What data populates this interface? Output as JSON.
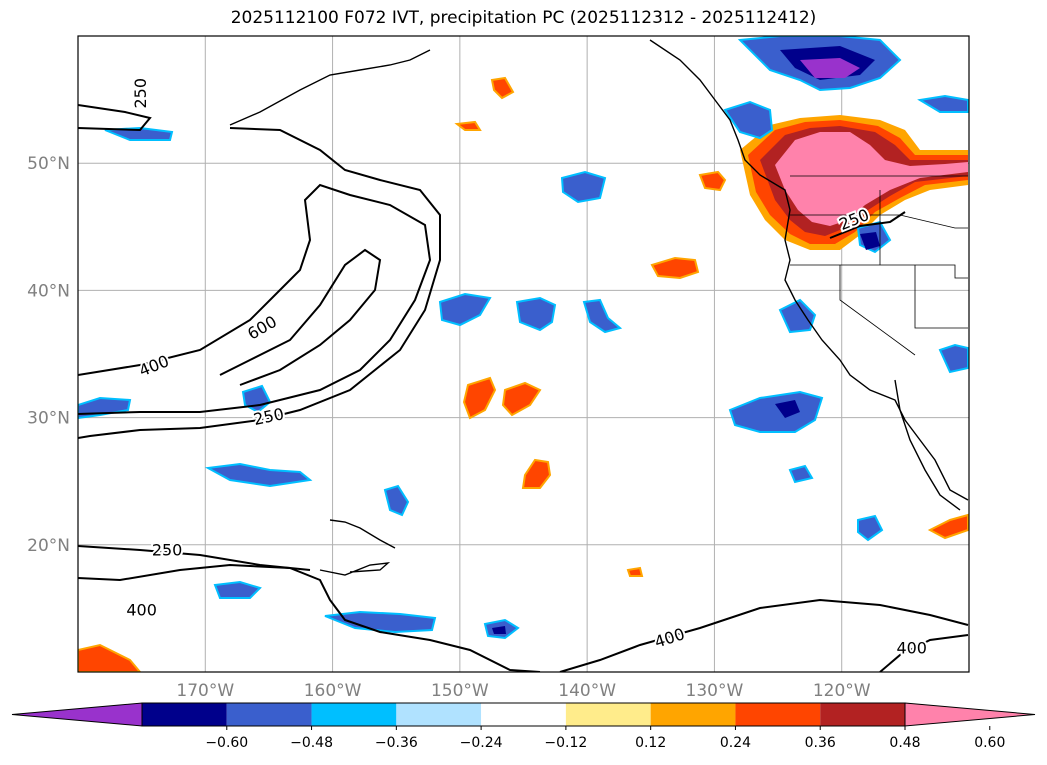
{
  "title": "2025112100 F072 IVT, precipitation PC (2025112312 - 2025112412)",
  "map": {
    "lon_range": [
      -180,
      -110
    ],
    "lat_range": [
      10,
      60
    ],
    "lat_ticks": [
      {
        "value": 50,
        "label": "50°N"
      },
      {
        "value": 40,
        "label": "40°N"
      },
      {
        "value": 30,
        "label": "30°N"
      },
      {
        "value": 20,
        "label": "20°N"
      }
    ],
    "lon_ticks": [
      {
        "value": -170,
        "label": "170°W"
      },
      {
        "value": -160,
        "label": "160°W"
      },
      {
        "value": -150,
        "label": "150°W"
      },
      {
        "value": -140,
        "label": "140°W"
      },
      {
        "value": -130,
        "label": "130°W"
      },
      {
        "value": -120,
        "label": "120°W"
      }
    ],
    "contour_labels": [
      {
        "text": "250",
        "lon": -175,
        "lat": 55.5,
        "rotate": -90
      },
      {
        "text": "600",
        "lon": -165.5,
        "lat": 37,
        "rotate": -30
      },
      {
        "text": "400",
        "lon": -174,
        "lat": 34,
        "rotate": -22
      },
      {
        "text": "250",
        "lon": -165,
        "lat": 30,
        "rotate": -12
      },
      {
        "text": "250",
        "lon": -173,
        "lat": 19.5,
        "rotate": 0
      },
      {
        "text": "400",
        "lon": -175,
        "lat": 14.8,
        "rotate": 0
      },
      {
        "text": "400",
        "lon": -133.5,
        "lat": 12.6,
        "rotate": -18
      },
      {
        "text": "400",
        "lon": -114.5,
        "lat": 11.8,
        "rotate": 0
      },
      {
        "text": "250",
        "lon": -119,
        "lat": 45.5,
        "rotate": -22
      }
    ]
  },
  "colorbar": {
    "colors": [
      "#9932cc",
      "#00008b",
      "#3a5fcd",
      "#00bfff",
      "#b0e2ff",
      "#ffffff",
      "#ffec8b",
      "#ffa500",
      "#ff4500",
      "#b22222",
      "#ff82ab"
    ],
    "labels": [
      "−0.60",
      "−0.48",
      "−0.36",
      "−0.24",
      "−0.12",
      "0.12",
      "0.24",
      "0.36",
      "0.48",
      "0.60"
    ]
  }
}
